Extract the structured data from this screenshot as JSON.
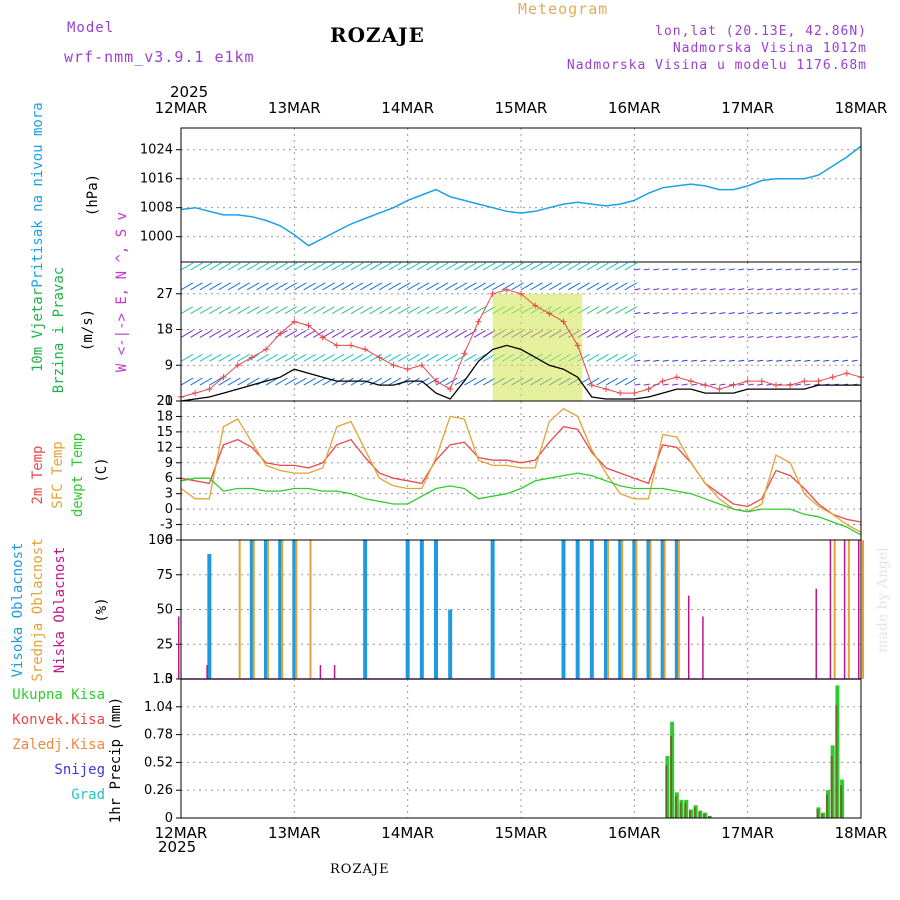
{
  "header": {
    "model_label": "Model",
    "model_name": "wrf-nmm_v3.9.1  e1km",
    "title": "ROZAJE",
    "product": "Meteogram",
    "lonlat": "lon,lat (20.13E, 42.86N)",
    "altitude": "Nadmorska Visina 1012m",
    "model_altitude": "Nadmorska Visina u modelu 1176.68m",
    "year": "2025",
    "footer_station": "ROZAJE",
    "credit": "made by Angel"
  },
  "colors": {
    "pressure": "#1ea0e6",
    "wind_label": "#22b14c",
    "temp2m": "#ea4a4a",
    "sfc_temp": "#e3a336",
    "dewpt": "#2ecc2e",
    "high_cloud": "#1e9ae0",
    "mid_cloud": "#e3a336",
    "low_cloud": "#c0168c",
    "total_precip": "#2ecc2e",
    "conv_precip": "#e84848",
    "strat_precip": "#ee8844",
    "snow": "#3a3ae0",
    "graupel": "#22c4c4",
    "grid": "#999999",
    "purple_text": "#9a3fd2"
  },
  "chart_data": [
    {
      "type": "line",
      "panel": "pressure",
      "title": "",
      "ylabel": "Pritisak na nivou mora",
      "yunit": "(hPa)",
      "ylim": [
        993,
        1030
      ],
      "yticks": [
        1000,
        1008,
        1016,
        1024
      ],
      "x_ticks": [
        "12MAR",
        "13MAR",
        "14MAR",
        "15MAR",
        "16MAR",
        "17MAR",
        "18MAR"
      ],
      "x_hours": [
        0,
        3,
        6,
        9,
        12,
        15,
        18,
        21,
        24,
        27,
        30,
        33,
        36,
        39,
        42,
        45,
        48,
        51,
        54,
        57,
        60,
        63,
        66,
        69,
        72,
        75,
        78,
        81,
        84,
        87,
        90,
        93,
        96,
        99,
        102,
        105,
        108,
        111,
        114,
        117,
        120,
        123,
        126,
        129,
        132,
        135,
        138,
        141,
        144
      ],
      "series": [
        {
          "name": "",
          "values": [
            1007.5,
            1008,
            1007,
            1006,
            1006,
            1005.5,
            1004.5,
            1003,
            1000.5,
            997.5,
            999.5,
            1001.5,
            1003.5,
            1005,
            1006.5,
            1008,
            1010,
            1011.5,
            1013,
            1011,
            1010,
            1009,
            1008,
            1007,
            1006.5,
            1007,
            1008,
            1009,
            1009.5,
            1009,
            1008.5,
            1009,
            1010,
            1012,
            1013.5,
            1014,
            1014.5,
            1014,
            1013,
            1013,
            1014,
            1015.5,
            1016,
            1016,
            1016,
            1017,
            1019.5,
            1022,
            1025
          ]
        }
      ]
    },
    {
      "type": "line",
      "panel": "wind",
      "title": "",
      "ylabel": "10m Vjetar Brzina i Pravac",
      "yunit": "(m/s)",
      "compass_note": "W <-|-> E, N ^, S v",
      "ylim": [
        0,
        35
      ],
      "yticks": [
        0,
        9,
        18,
        27
      ],
      "x_hours": [
        0,
        3,
        6,
        9,
        12,
        15,
        18,
        21,
        24,
        27,
        30,
        33,
        36,
        39,
        42,
        45,
        48,
        51,
        54,
        57,
        60,
        63,
        66,
        69,
        72,
        75,
        78,
        81,
        84,
        87,
        90,
        93,
        96,
        99,
        102,
        105,
        108,
        111,
        114,
        117,
        120,
        123,
        126,
        129,
        132,
        135,
        138,
        141,
        144
      ],
      "series": [
        {
          "name": "gust",
          "values": [
            1,
            2,
            3,
            6,
            9,
            11,
            13,
            17,
            20,
            19,
            16,
            14,
            14,
            13,
            11,
            9,
            8,
            9,
            5,
            3,
            12,
            20,
            27,
            28,
            27,
            24,
            22,
            20,
            14,
            4,
            3,
            2,
            2,
            3,
            5,
            6,
            5,
            4,
            3,
            4,
            5,
            5,
            4,
            4,
            5,
            5,
            6,
            7,
            6
          ]
        },
        {
          "name": "mean",
          "values": [
            0,
            0.5,
            1,
            2,
            3,
            4,
            5,
            6,
            8,
            7,
            6,
            5,
            5,
            5,
            4,
            4,
            5,
            5,
            2,
            0.5,
            5,
            10,
            13,
            14,
            13,
            11,
            9,
            8,
            6,
            1,
            0.5,
            0.5,
            0.5,
            1,
            2,
            3,
            3,
            2,
            2,
            2,
            3,
            3,
            3,
            3,
            3,
            4,
            4,
            4,
            4
          ]
        }
      ]
    },
    {
      "type": "line",
      "panel": "temperature",
      "title": "",
      "ylabels": [
        "2m Temp",
        "SFC Temp",
        "dewpt Temp"
      ],
      "yunit": "(C)",
      "ylim": [
        -6,
        21
      ],
      "yticks": [
        -6,
        -3,
        0,
        3,
        6,
        9,
        12,
        15,
        18,
        21
      ],
      "x_hours": [
        0,
        3,
        6,
        9,
        12,
        15,
        18,
        21,
        24,
        27,
        30,
        33,
        36,
        39,
        42,
        45,
        48,
        51,
        54,
        57,
        60,
        63,
        66,
        69,
        72,
        75,
        78,
        81,
        84,
        87,
        90,
        93,
        96,
        99,
        102,
        105,
        108,
        111,
        114,
        117,
        120,
        123,
        126,
        129,
        132,
        135,
        138,
        141,
        144
      ],
      "series": [
        {
          "name": "2m Temp",
          "values": [
            6,
            5.5,
            5,
            12.5,
            13.5,
            12,
            9,
            8.5,
            8.5,
            8,
            9,
            12.5,
            13.5,
            10,
            7,
            6,
            5.5,
            5,
            9.5,
            12.5,
            13,
            10,
            9.5,
            9.5,
            9,
            9.5,
            13,
            16,
            15.5,
            11,
            8,
            7,
            6,
            5,
            12.5,
            12,
            9,
            5,
            3,
            1,
            0.5,
            2,
            7.5,
            6.5,
            4,
            1,
            -1,
            -2,
            -2.5
          ]
        },
        {
          "name": "SFC Temp",
          "values": [
            4,
            2,
            2,
            16,
            17.5,
            13,
            8.5,
            7.5,
            7,
            7,
            8,
            16,
            17,
            11.5,
            6,
            4.5,
            4,
            4,
            10,
            18,
            17.5,
            9.5,
            8.5,
            8.5,
            8,
            8,
            17,
            19.5,
            18,
            11.5,
            7,
            3,
            2,
            2,
            14.5,
            14,
            9,
            5,
            2,
            0,
            -0.5,
            1,
            10.5,
            9,
            3,
            0.5,
            -1,
            -3,
            -4.5
          ]
        },
        {
          "name": "dewpt Temp",
          "values": [
            5.5,
            6,
            6,
            3.5,
            4,
            4,
            3.5,
            3.5,
            4,
            4,
            3.5,
            3.5,
            3,
            2,
            1.5,
            1,
            1,
            2.5,
            4,
            4.5,
            4,
            2,
            2.5,
            3,
            4,
            5.5,
            6,
            6.5,
            7,
            6.5,
            5.5,
            4.5,
            4,
            4,
            4,
            3.5,
            3,
            2,
            1,
            0,
            -0.5,
            0,
            0,
            0,
            -1,
            -1.5,
            -2.5,
            -3.5,
            -5
          ]
        }
      ]
    },
    {
      "type": "bar",
      "panel": "clouds",
      "title": "",
      "ylabels": [
        "Visoka Oblacnost",
        "Srednja Oblacnost",
        "Niska Oblacnost"
      ],
      "yunit": "(%)",
      "ylim": [
        0,
        100
      ],
      "yticks": [
        0,
        25,
        50,
        75,
        100
      ],
      "x_hours": [
        0,
        3,
        6,
        9,
        12,
        15,
        18,
        21,
        24,
        27,
        30,
        33,
        36,
        39,
        42,
        45,
        48,
        51,
        54,
        57,
        60,
        63,
        66,
        69,
        72,
        75,
        78,
        81,
        84,
        87,
        90,
        93,
        96,
        99,
        102,
        105,
        108,
        111,
        114,
        117,
        120,
        123,
        126,
        129,
        132,
        135,
        138,
        141,
        144
      ],
      "series": [
        {
          "name": "Visoka Oblacnost",
          "values": [
            0,
            0,
            90,
            0,
            0,
            100,
            100,
            100,
            100,
            0,
            0,
            0,
            0,
            100,
            0,
            0,
            100,
            100,
            100,
            50,
            0,
            0,
            100,
            0,
            0,
            0,
            0,
            100,
            100,
            100,
            100,
            100,
            100,
            100,
            100,
            100,
            0,
            0,
            0,
            0,
            0,
            0,
            0,
            0,
            0,
            0,
            0,
            0,
            0
          ]
        },
        {
          "name": "Srednja Oblacnost",
          "values": [
            0,
            0,
            0,
            0,
            100,
            100,
            100,
            100,
            100,
            100,
            0,
            0,
            0,
            0,
            0,
            0,
            0,
            0,
            0,
            0,
            0,
            0,
            0,
            0,
            0,
            0,
            0,
            0,
            0,
            0,
            100,
            100,
            100,
            100,
            100,
            100,
            0,
            0,
            0,
            0,
            0,
            0,
            0,
            0,
            0,
            0,
            100,
            100,
            100
          ]
        },
        {
          "name": "Niska Oblacnost",
          "values": [
            45,
            0,
            10,
            0,
            0,
            0,
            0,
            0,
            0,
            0,
            10,
            10,
            0,
            0,
            0,
            0,
            0,
            0,
            0,
            0,
            0,
            0,
            0,
            0,
            0,
            0,
            0,
            0,
            0,
            0,
            0,
            0,
            0,
            0,
            0,
            0,
            60,
            45,
            0,
            0,
            0,
            0,
            0,
            0,
            0,
            65,
            100,
            100,
            100
          ]
        }
      ]
    },
    {
      "type": "bar",
      "panel": "precip",
      "title": "",
      "ylabel": "1hr Precip",
      "yunit": "(mm)",
      "legend": [
        "Ukupna Kisa",
        "Konvek.Kisa",
        "Zaledj.Kisa",
        "Snijeg",
        "Grad"
      ],
      "ylim": [
        0,
        1.3
      ],
      "yticks": [
        0,
        0.26,
        0.52,
        0.78,
        1.04,
        1.3
      ],
      "hours": [
        103,
        104,
        105,
        106,
        107,
        108,
        109,
        110,
        111,
        112,
        113,
        114,
        115,
        116,
        117,
        118,
        119,
        120,
        121,
        135,
        136,
        137,
        138,
        139,
        140,
        141
      ],
      "values": [
        0.58,
        0.9,
        0.24,
        0.17,
        0.17,
        0.08,
        0.12,
        0.07,
        0.05,
        0.02,
        0,
        0,
        0,
        0,
        0,
        0,
        0,
        0,
        0,
        0.1,
        0.05,
        0.26,
        0.68,
        1.24,
        0.36,
        0
      ]
    }
  ]
}
